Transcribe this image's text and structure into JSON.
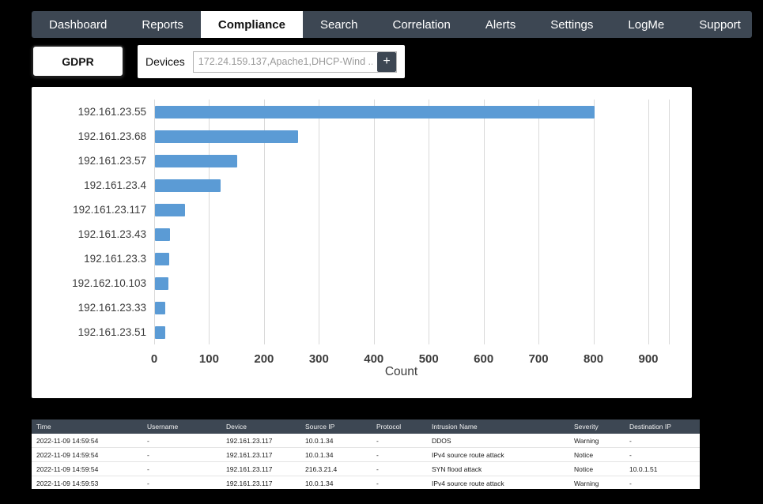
{
  "nav": {
    "items": [
      {
        "label": "Dashboard",
        "active": false
      },
      {
        "label": "Reports",
        "active": false
      },
      {
        "label": "Compliance",
        "active": true
      },
      {
        "label": "Search",
        "active": false
      },
      {
        "label": "Correlation",
        "active": false
      },
      {
        "label": "Alerts",
        "active": false
      },
      {
        "label": "Settings",
        "active": false
      },
      {
        "label": "LogMe",
        "active": false
      },
      {
        "label": "Support",
        "active": false
      }
    ]
  },
  "filters": {
    "gdpr_button": "GDPR",
    "devices_label": "Devices",
    "devices_value": "172.24.159.137,Apache1,DHCP-Wind ...",
    "add_button_label": "+"
  },
  "chart_data": {
    "type": "bar",
    "orientation": "horizontal",
    "categories": [
      "192.161.23.55",
      "192.161.23.68",
      "192.161.23.57",
      "192.161.23.4",
      "192.161.23.117",
      "192.161.23.43",
      "192.161.23.3",
      "192.162.10.103",
      "192.161.23.33",
      "192.161.23.51"
    ],
    "values": [
      800,
      260,
      150,
      120,
      55,
      27,
      26,
      25,
      18,
      18
    ],
    "title": "",
    "xlabel": "Count",
    "ylabel": "",
    "xlim": [
      0,
      900
    ],
    "xticks": [
      0,
      100,
      200,
      300,
      400,
      500,
      600,
      700,
      800,
      900
    ],
    "grid": true,
    "bar_color": "#5b9bd5"
  },
  "table": {
    "columns": [
      "Time",
      "Username",
      "Device",
      "Source IP",
      "Protocol",
      "Intrusion Name",
      "Severity",
      "Destination IP"
    ],
    "rows": [
      [
        "2022-11-09 14:59:54",
        "-",
        "192.161.23.117",
        "10.0.1.34",
        "-",
        "DDOS",
        "Warning",
        "-"
      ],
      [
        "2022-11-09 14:59:54",
        "-",
        "192.161.23.117",
        "10.0.1.34",
        "-",
        "IPv4 source route attack",
        "Notice",
        "-"
      ],
      [
        "2022-11-09 14:59:54",
        "-",
        "192.161.23.117",
        "216.3.21.4",
        "-",
        "SYN flood attack",
        "Notice",
        "10.0.1.51"
      ],
      [
        "2022-11-09 14:59:53",
        "-",
        "192.161.23.117",
        "10.0.1.34",
        "-",
        "IPv4 source route attack",
        "Warning",
        "-"
      ]
    ]
  },
  "colors": {
    "nav_bg": "#3d4753",
    "bar": "#5b9bd5",
    "table_header_bg": "#3d4753",
    "page_bg": "#000000"
  }
}
